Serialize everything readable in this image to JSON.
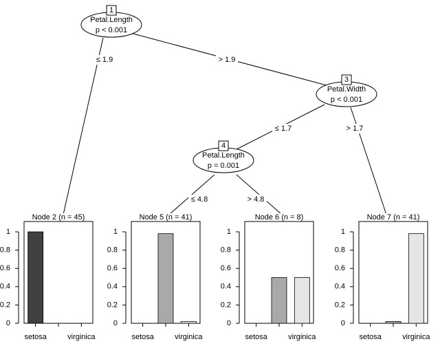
{
  "nodes": [
    {
      "id": "1",
      "label": "Petal.Length",
      "p": "p < 0.001"
    },
    {
      "id": "3",
      "label": "Petal.Width",
      "p": "p < 0.001"
    },
    {
      "id": "4",
      "label": "Petal.Length",
      "p": "p = 0.001"
    }
  ],
  "edges": [
    "≤ 1.9",
    "> 1.9",
    "≤ 1.7",
    "> 1.7",
    "≤ 4.8",
    "> 4.8"
  ],
  "chart_data": [
    {
      "type": "bar",
      "title": "Node 2 (n = 45)",
      "categories": [
        "setosa",
        null,
        "virginica"
      ],
      "values": [
        1,
        0,
        0
      ],
      "colors": [
        "#404040",
        "#a9a9a9",
        "#e6e6e6"
      ],
      "ylim": [
        0,
        1
      ],
      "yticks": [
        0,
        0.2,
        0.4,
        0.6,
        0.8,
        1
      ]
    },
    {
      "type": "bar",
      "title": "Node 5 (n = 41)",
      "categories": [
        "setosa",
        null,
        "virginica"
      ],
      "values": [
        0,
        0.98,
        0.02
      ],
      "colors": [
        "#404040",
        "#a9a9a9",
        "#e6e6e6"
      ],
      "ylim": [
        0,
        1
      ],
      "yticks": [
        0,
        0.2,
        0.4,
        0.6,
        0.8,
        1
      ]
    },
    {
      "type": "bar",
      "title": "Node 6 (n = 8)",
      "categories": [
        "setosa",
        null,
        "virginica"
      ],
      "values": [
        0,
        0.5,
        0.5
      ],
      "colors": [
        "#404040",
        "#a9a9a9",
        "#e6e6e6"
      ],
      "ylim": [
        0,
        1
      ],
      "yticks": [
        0,
        0.2,
        0.4,
        0.6,
        0.8,
        1
      ]
    },
    {
      "type": "bar",
      "title": "Node 7 (n = 41)",
      "categories": [
        "setosa",
        null,
        "virginica"
      ],
      "values": [
        0,
        0.02,
        0.98
      ],
      "colors": [
        "#404040",
        "#a9a9a9",
        "#e6e6e6"
      ],
      "ylim": [
        0,
        1
      ],
      "yticks": [
        0,
        0.2,
        0.4,
        0.6,
        0.8,
        1
      ]
    }
  ]
}
